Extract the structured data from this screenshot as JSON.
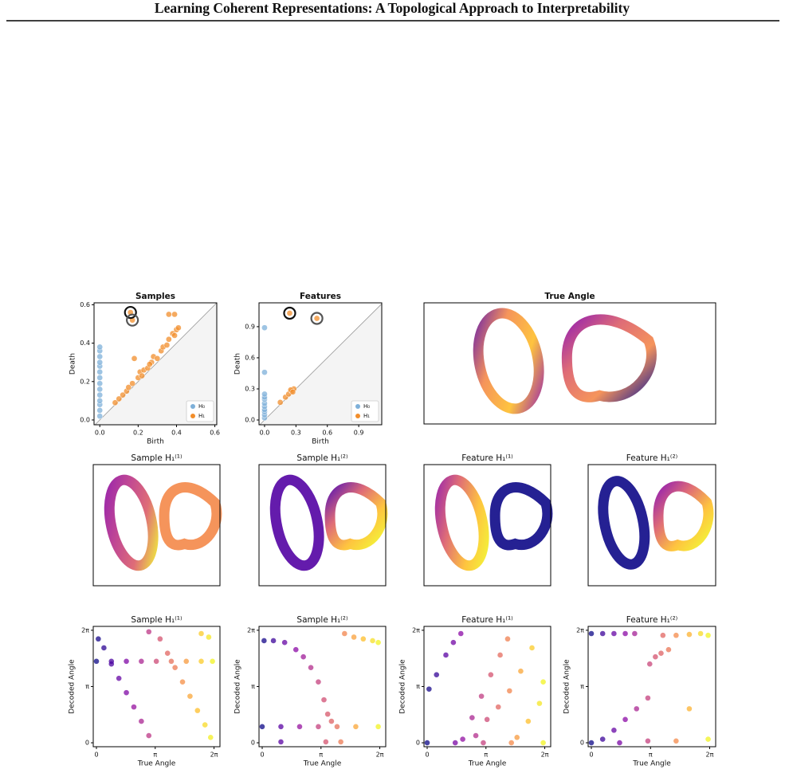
{
  "header": {
    "title": "Learning Coherent Representations: A Topological Approach to Interpretability"
  },
  "chart_data": [
    {
      "type": "persistence",
      "title": "Samples",
      "xlabel": "Birth",
      "ylabel": "Death",
      "xlim": [
        -0.03,
        0.61
      ],
      "ylim": [
        -0.025,
        0.61
      ],
      "xticks": [
        {
          "value": 0,
          "label": "0.0"
        },
        0.2,
        0.4,
        0.6
      ],
      "yticks": [
        {
          "value": 0,
          "label": "0.0"
        },
        0.2,
        0.4,
        0.6
      ],
      "legend": "lower right",
      "highlight": [
        0,
        1
      ],
      "series": [
        {
          "name": "H₀",
          "color": "#7eb0d9",
          "x": [
            0,
            0,
            0,
            0,
            0,
            0,
            0,
            0,
            0,
            0,
            0,
            0,
            0,
            0
          ],
          "y": [
            0.02,
            0.05,
            0.08,
            0.1,
            0.13,
            0.16,
            0.19,
            0.22,
            0.25,
            0.28,
            0.3,
            0.33,
            0.36,
            0.38
          ]
        },
        {
          "name": "H₁",
          "color": "#f28e2b",
          "x": [
            0.16,
            0.17,
            0.08,
            0.1,
            0.12,
            0.14,
            0.15,
            0.17,
            0.18,
            0.2,
            0.21,
            0.23,
            0.25,
            0.27,
            0.28,
            0.3,
            0.32,
            0.33,
            0.35,
            0.36,
            0.38,
            0.39,
            0.4,
            0.41,
            0.36,
            0.39,
            0.22,
            0.26
          ],
          "y": [
            0.56,
            0.52,
            0.09,
            0.11,
            0.13,
            0.15,
            0.17,
            0.19,
            0.32,
            0.22,
            0.25,
            0.26,
            0.27,
            0.3,
            0.33,
            0.32,
            0.36,
            0.38,
            0.39,
            0.42,
            0.45,
            0.44,
            0.47,
            0.48,
            0.55,
            0.55,
            0.23,
            0.29
          ]
        }
      ]
    },
    {
      "type": "persistence",
      "title": "Features",
      "xlabel": "Birth",
      "ylabel": "Death",
      "xlim": [
        -0.053,
        1.12
      ],
      "ylim": [
        -0.046,
        1.13
      ],
      "xticks": [
        {
          "value": 0,
          "label": "0.0"
        },
        0.3,
        0.6,
        0.9
      ],
      "yticks": [
        {
          "value": 0,
          "label": "0.0"
        },
        0.3,
        0.6,
        0.9
      ],
      "legend": "lower right",
      "highlight": [
        0,
        1
      ],
      "series": [
        {
          "name": "H₀",
          "color": "#7eb0d9",
          "x": [
            0,
            0,
            0,
            0,
            0,
            0,
            0,
            0,
            0,
            0,
            0
          ],
          "y": [
            0.02,
            0.05,
            0.08,
            0.1,
            0.13,
            0.16,
            0.2,
            0.22,
            0.25,
            0.46,
            0.89
          ]
        },
        {
          "name": "H₁",
          "color": "#f28e2b",
          "x": [
            0.24,
            0.5,
            0.15,
            0.2,
            0.23,
            0.26,
            0.28,
            0.25,
            0.27
          ],
          "y": [
            1.03,
            0.98,
            0.17,
            0.22,
            0.25,
            0.28,
            0.3,
            0.29,
            0.27
          ]
        }
      ]
    },
    {
      "type": "embedding",
      "title": "True Angle"
    },
    {
      "type": "embedding",
      "title": "Sample H₁⁽¹⁾"
    },
    {
      "type": "embedding",
      "title": "Sample H₁⁽²⁾"
    },
    {
      "type": "embedding",
      "title": "Feature H₁⁽¹⁾"
    },
    {
      "type": "embedding",
      "title": "Feature H₁⁽²⁾"
    },
    {
      "type": "scatter",
      "title": "Sample H₁⁽¹⁾",
      "xlabel": "True Angle",
      "ylabel": "Decoded Angle",
      "colormap": "plasma",
      "xlim": [
        -0.17,
        6.6
      ],
      "ylim": [
        -0.22,
        6.5
      ],
      "xticks": [
        0,
        {
          "value": 3.1416,
          "label": "π"
        },
        {
          "value": 6.2832,
          "label": "2π"
        }
      ],
      "yticks": [
        0,
        {
          "value": 3.1416,
          "label": "π"
        },
        {
          "value": 6.2832,
          "label": "2π"
        }
      ],
      "x": [
        0.1,
        0.4,
        0.8,
        1.2,
        1.6,
        2.0,
        2.4,
        2.8,
        3.4,
        3.8,
        4.2,
        4.6,
        5.0,
        5.4,
        5.8,
        6.1,
        5.6,
        6.0,
        2.8,
        0.0,
        0.8,
        1.6,
        2.4,
        3.2,
        4.0,
        4.8,
        5.6,
        6.2
      ],
      "y": [
        5.8,
        5.3,
        4.4,
        3.6,
        2.8,
        2.0,
        1.2,
        0.4,
        5.8,
        5.0,
        4.2,
        3.4,
        2.6,
        1.8,
        1.0,
        0.3,
        6.1,
        5.9,
        6.2,
        4.55,
        4.55,
        4.55,
        4.55,
        4.55,
        4.55,
        4.55,
        4.55,
        4.55
      ]
    },
    {
      "type": "scatter",
      "title": "Sample H₁⁽²⁾",
      "xlabel": "True Angle",
      "ylabel": "Decoded Angle",
      "colormap": "plasma",
      "xlim": [
        -0.17,
        6.6
      ],
      "ylim": [
        -0.22,
        6.5
      ],
      "xticks": [
        0,
        {
          "value": 3.1416,
          "label": "π"
        },
        {
          "value": 6.2832,
          "label": "2π"
        }
      ],
      "yticks": [
        0,
        {
          "value": 3.1416,
          "label": "π"
        },
        {
          "value": 6.2832,
          "label": "2π"
        }
      ],
      "x": [
        0.1,
        0.6,
        1.2,
        1.8,
        2.2,
        2.6,
        3.0,
        3.3,
        3.5,
        3.7,
        4.4,
        4.9,
        5.4,
        5.9,
        6.2,
        0.0,
        1.0,
        2.0,
        3.0,
        4.0,
        5.0,
        6.2,
        1.0,
        3.4,
        4.2
      ],
      "y": [
        5.7,
        5.7,
        5.6,
        5.2,
        4.8,
        4.2,
        3.4,
        2.4,
        1.6,
        1.2,
        6.1,
        5.9,
        5.8,
        5.7,
        5.6,
        0.9,
        0.9,
        0.9,
        0.9,
        0.9,
        0.9,
        0.9,
        0.05,
        0.05,
        0.05
      ]
    },
    {
      "type": "scatter",
      "title": "Feature H₁⁽¹⁾",
      "xlabel": "True Angle",
      "ylabel": "Decoded Angle",
      "colormap": "plasma",
      "xlim": [
        -0.17,
        6.6
      ],
      "ylim": [
        -0.22,
        6.5
      ],
      "xticks": [
        0,
        {
          "value": 3.1416,
          "label": "π"
        },
        {
          "value": 6.2832,
          "label": "2π"
        }
      ],
      "yticks": [
        0,
        {
          "value": 3.1416,
          "label": "π"
        },
        {
          "value": 6.2832,
          "label": "2π"
        }
      ],
      "x": [
        0.1,
        0.5,
        1.0,
        1.4,
        1.8,
        1.9,
        2.4,
        2.9,
        3.4,
        3.9,
        4.3,
        2.6,
        3.2,
        3.8,
        4.4,
        5.0,
        5.6,
        4.8,
        5.4,
        6.0,
        6.2,
        0.0,
        1.5,
        3.0,
        4.5,
        6.2
      ],
      "y": [
        3.0,
        3.8,
        4.9,
        5.6,
        6.1,
        0.2,
        1.4,
        2.6,
        3.8,
        4.9,
        5.8,
        0.4,
        1.3,
        2.0,
        2.9,
        4.0,
        5.3,
        0.3,
        1.2,
        2.2,
        3.4,
        0.0,
        0.0,
        0.0,
        0.0,
        0.0
      ]
    },
    {
      "type": "scatter",
      "title": "Feature H₁⁽²⁾",
      "xlabel": "True Angle",
      "ylabel": "Decoded Angle",
      "colormap": "plasma",
      "xlim": [
        -0.17,
        6.6
      ],
      "ylim": [
        -0.22,
        6.5
      ],
      "xticks": [
        0,
        {
          "value": 3.1416,
          "label": "π"
        },
        {
          "value": 6.2832,
          "label": "2π"
        }
      ],
      "yticks": [
        0,
        {
          "value": 3.1416,
          "label": "π"
        },
        {
          "value": 6.2832,
          "label": "2π"
        }
      ],
      "x": [
        0.0,
        0.6,
        1.2,
        1.8,
        2.3,
        3.8,
        4.5,
        5.2,
        5.8,
        6.2,
        3.1,
        3.4,
        3.7,
        4.1,
        0.6,
        1.2,
        1.8,
        2.4,
        3.0,
        0.0,
        1.5,
        3.0,
        4.5,
        6.2,
        5.2
      ],
      "y": [
        6.1,
        6.1,
        6.1,
        6.1,
        6.1,
        6.0,
        6.0,
        6.05,
        6.1,
        6.0,
        4.4,
        4.8,
        5.0,
        5.2,
        0.2,
        0.7,
        1.3,
        1.9,
        2.5,
        0.0,
        0.0,
        0.1,
        0.1,
        0.2,
        1.9
      ]
    }
  ]
}
